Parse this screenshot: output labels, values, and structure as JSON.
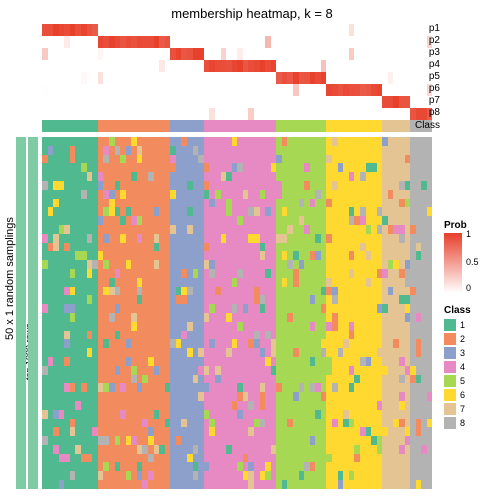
{
  "title": "membership heatmap, k = 8",
  "left_label_outer": "50 x 1 random samplings",
  "left_label_inner": "top 1000 rows",
  "left_band_color": "#7ecba4",
  "prob_row_labels": [
    "p1",
    "p2",
    "p3",
    "p4",
    "p5",
    "p6",
    "p7",
    "p8"
  ],
  "class_strip_label": "Class",
  "prob_legend": {
    "title": "Prob",
    "ticks": [
      "1",
      "0.5",
      "0"
    ],
    "gradient_top": "#e73f2a",
    "gradient_bottom": "#ffffff"
  },
  "class_legend": {
    "title": "Class",
    "items": [
      {
        "label": "1",
        "color": "#50b98f"
      },
      {
        "label": "2",
        "color": "#f28c5f"
      },
      {
        "label": "3",
        "color": "#8da0cb"
      },
      {
        "label": "4",
        "color": "#e78ac3"
      },
      {
        "label": "5",
        "color": "#a6d854"
      },
      {
        "label": "6",
        "color": "#ffd92f"
      },
      {
        "label": "7",
        "color": "#e5c494"
      },
      {
        "label": "8",
        "color": "#b3b3b3"
      }
    ]
  },
  "n_cols": 70,
  "n_main_rows": 40,
  "col_class": [
    1,
    1,
    1,
    1,
    1,
    1,
    1,
    1,
    1,
    1,
    2,
    2,
    2,
    2,
    2,
    2,
    2,
    2,
    2,
    2,
    2,
    2,
    2,
    3,
    3,
    3,
    3,
    3,
    3,
    4,
    4,
    4,
    4,
    4,
    4,
    4,
    4,
    4,
    4,
    4,
    4,
    4,
    5,
    5,
    5,
    5,
    5,
    5,
    5,
    5,
    5,
    6,
    6,
    6,
    6,
    6,
    6,
    6,
    6,
    6,
    6,
    7,
    7,
    7,
    7,
    7,
    8,
    8,
    8,
    8
  ],
  "prob_red_bands": [
    [
      0,
      9
    ],
    [
      10,
      22
    ],
    [
      23,
      28
    ],
    [
      29,
      41
    ],
    [
      42,
      50
    ],
    [
      51,
      60
    ],
    [
      61,
      65
    ],
    [
      66,
      69
    ]
  ],
  "class_colors": {
    "1": "#50b98f",
    "2": "#f28c5f",
    "3": "#8da0cb",
    "4": "#e78ac3",
    "5": "#a6d854",
    "6": "#ffd92f",
    "7": "#e5c494",
    "8": "#b3b3b3"
  },
  "noise_prob": 0.18
}
